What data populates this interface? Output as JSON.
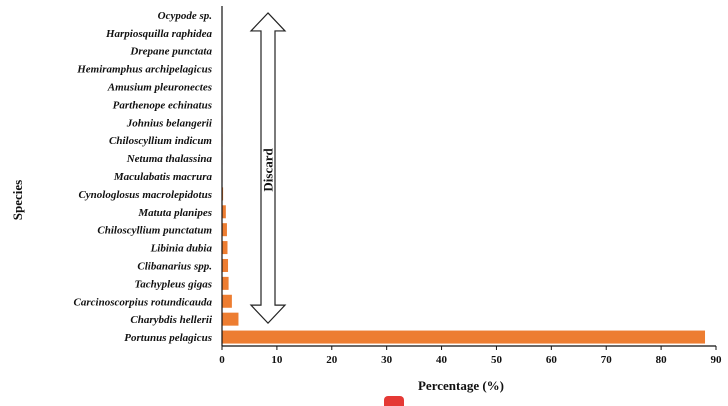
{
  "chart_data": {
    "type": "bar",
    "orientation": "horizontal",
    "categories": [
      "Ocypode sp.",
      "Harpiosquilla raphidea",
      "Drepane punctata",
      "Hemiramphus archipelagicus",
      "Amusium pleuronectes",
      "Parthenope echinatus",
      "Johnius belangerii",
      "Chiloscyllium indicum",
      "Netuma thalassina",
      "Maculabatis macrura",
      "Cynologlosus macrolepidotus",
      "Matuta planipes",
      "Chiloscyllium punctatum",
      "Libinia dubia",
      "Clibanarius spp.",
      "Tachypleus gigas",
      "Carcinoscorpius rotundicauda",
      "Charybdis hellerii",
      "Portunus pelagicus"
    ],
    "values": [
      0.05,
      0.05,
      0.05,
      0.05,
      0.05,
      0.05,
      0.1,
      0.1,
      0.1,
      0.1,
      0.2,
      0.7,
      0.9,
      1.0,
      1.1,
      1.2,
      1.8,
      3.0,
      88.0
    ],
    "xlabel": "Percentage (%)",
    "ylabel": "Species",
    "xlim": [
      0,
      90
    ],
    "xticks": [
      "0",
      "10",
      "20",
      "30",
      "40",
      "50",
      "60",
      "70",
      "80",
      "90"
    ],
    "bar_color": "#ed7d31",
    "grid": false,
    "annotation": {
      "text": "Discard",
      "type": "double-headed arrow",
      "from_category": "Ocypode sp.",
      "to_category": "Charybdis hellerii"
    }
  }
}
